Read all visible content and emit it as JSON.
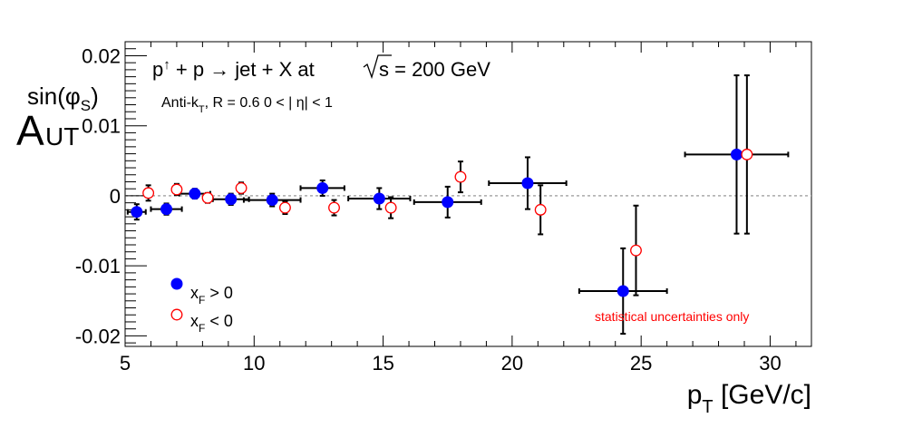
{
  "chart_data": {
    "type": "scatter",
    "title": "",
    "annotations": {
      "process_main": "p",
      "process_up": "↑",
      "process_rest": " + p → jet + X at ",
      "energy": "s = 200 GeV",
      "algo_main": "Anti-k",
      "algo_sub": "T",
      "algo_rest": ", R = 0.6   0 < | η| < 1",
      "note": "statistical uncertainties only"
    },
    "colors": {
      "xf_pos": "#0000ff",
      "xf_neg": "#ff0000",
      "note": "#ff0000",
      "zero_line": "#aaaaaa"
    },
    "xlabel": {
      "main": "p",
      "sub": "T",
      "unit": " [GeV/c]"
    },
    "ylabel": {
      "main": "A",
      "sub": "UT",
      "sup": "sin(φ",
      "sup_sub": "S",
      "sup_close": ")"
    },
    "xlim": [
      5,
      31.6
    ],
    "ylim": [
      -0.0215,
      0.022
    ],
    "xticks": [
      5,
      10,
      15,
      20,
      25,
      30
    ],
    "xtick_labels": [
      "5",
      "10",
      "15",
      "20",
      "25",
      "30"
    ],
    "yticks": [
      -0.02,
      -0.01,
      0,
      0.01,
      0.02
    ],
    "ytick_labels": [
      "-0.02",
      "-0.01",
      "0",
      "0.01",
      "0.02"
    ],
    "grid": false,
    "legend": "bottom-left",
    "series": [
      {
        "name_main": "x",
        "name_sub": "F",
        "name_rest": " > 0",
        "marker": "filled-circle",
        "points": [
          {
            "x": 5.45,
            "y": -0.0023,
            "xerr": 0.35,
            "yerr": 0.0011
          },
          {
            "x": 6.6,
            "y": -0.0019,
            "xerr": 0.6,
            "yerr": 0.0008
          },
          {
            "x": 7.7,
            "y": 0.0003,
            "xerr": 0.6,
            "yerr": 0.0007
          },
          {
            "x": 9.1,
            "y": -0.0005,
            "xerr": 0.7,
            "yerr": 0.0008
          },
          {
            "x": 10.7,
            "y": -0.0006,
            "xerr": 1.1,
            "yerr": 0.0009
          },
          {
            "x": 12.65,
            "y": 0.0011,
            "xerr": 0.85,
            "yerr": 0.0011
          },
          {
            "x": 14.85,
            "y": -0.0004,
            "xerr": 1.2,
            "yerr": 0.0015
          },
          {
            "x": 17.5,
            "y": -0.0009,
            "xerr": 1.3,
            "yerr": 0.0022
          },
          {
            "x": 20.6,
            "y": 0.0018,
            "xerr": 1.5,
            "yerr": 0.0037
          },
          {
            "x": 24.3,
            "y": -0.0136,
            "xerr": 1.7,
            "yerr": 0.0061
          },
          {
            "x": 28.7,
            "y": 0.0059,
            "xerr": 2.0,
            "yerr": 0.0113
          }
        ]
      },
      {
        "name_main": "x",
        "name_sub": "F",
        "name_rest": " < 0",
        "marker": "open-circle",
        "points": [
          {
            "x": 5.9,
            "y": 0.0004,
            "yerr": 0.0011
          },
          {
            "x": 7.0,
            "y": 0.0009,
            "yerr": 0.0008
          },
          {
            "x": 8.2,
            "y": -0.0003,
            "yerr": 0.0007
          },
          {
            "x": 9.5,
            "y": 0.0011,
            "yerr": 0.0008
          },
          {
            "x": 11.2,
            "y": -0.0017,
            "yerr": 0.0009
          },
          {
            "x": 13.1,
            "y": -0.0017,
            "yerr": 0.0011
          },
          {
            "x": 15.3,
            "y": -0.0017,
            "yerr": 0.0015
          },
          {
            "x": 18.0,
            "y": 0.0027,
            "yerr": 0.0022
          },
          {
            "x": 21.1,
            "y": -0.002,
            "yerr": 0.0035
          },
          {
            "x": 24.8,
            "y": -0.0078,
            "yerr": 0.0064
          },
          {
            "x": 29.1,
            "y": 0.0059,
            "yerr": 0.0113
          }
        ]
      }
    ]
  }
}
